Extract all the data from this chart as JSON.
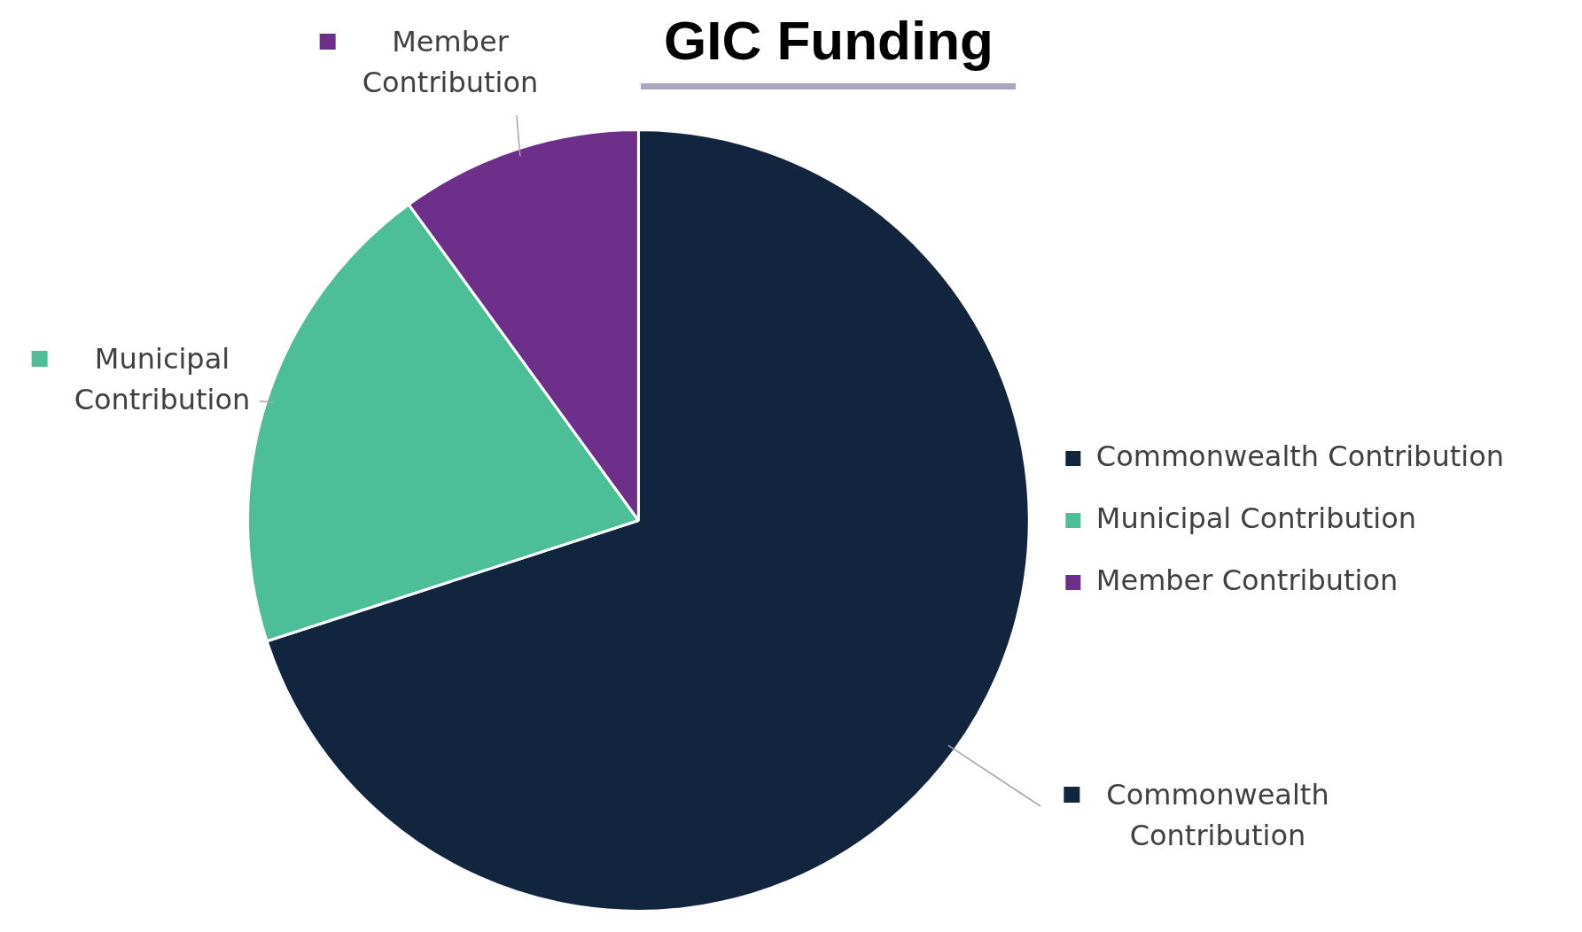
{
  "chart_data": {
    "type": "pie",
    "title": "GIC Funding",
    "categories": [
      "Commonwealth Contribution",
      "Municipal Contribution",
      "Member Contribution"
    ],
    "values": [
      70,
      20,
      10
    ],
    "colors": [
      "#12253f",
      "#4cbf98",
      "#6e2f8a"
    ],
    "legend": "right"
  }
}
